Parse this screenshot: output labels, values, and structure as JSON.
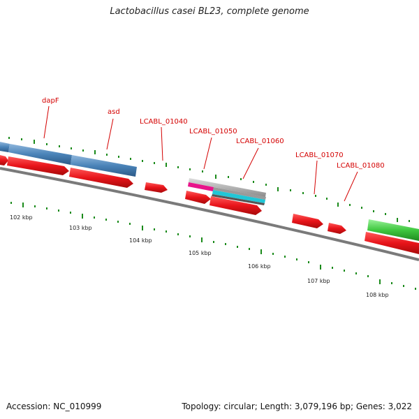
{
  "title": "Lactobacillus casei BL23, complete genome",
  "footer": {
    "accession": "Accession: NC_010999",
    "summary": "Topology: circular; Length: 3,079,196 bp; Genes: 3,022"
  },
  "colors": {
    "cds": "#e8141a",
    "blast_blue": "#4a83b8",
    "gc_green": "#3fc73f",
    "backbone": "#7a7a7a",
    "ticks": "#1a8a1a",
    "labels": "#d40000"
  },
  "gene_labels": [
    {
      "name": "dapF"
    },
    {
      "name": "asd"
    },
    {
      "name": "LCABL_01040"
    },
    {
      "name": "LCABL_01050"
    },
    {
      "name": "LCABL_01060"
    },
    {
      "name": "LCABL_01070"
    },
    {
      "name": "LCABL_01080"
    }
  ],
  "ruler": [
    {
      "label": "102 kbp"
    },
    {
      "label": "103 kbp"
    },
    {
      "label": "104 kbp"
    },
    {
      "label": "105 kbp"
    },
    {
      "label": "106 kbp"
    },
    {
      "label": "107 kbp"
    },
    {
      "label": "108 kbp"
    }
  ]
}
